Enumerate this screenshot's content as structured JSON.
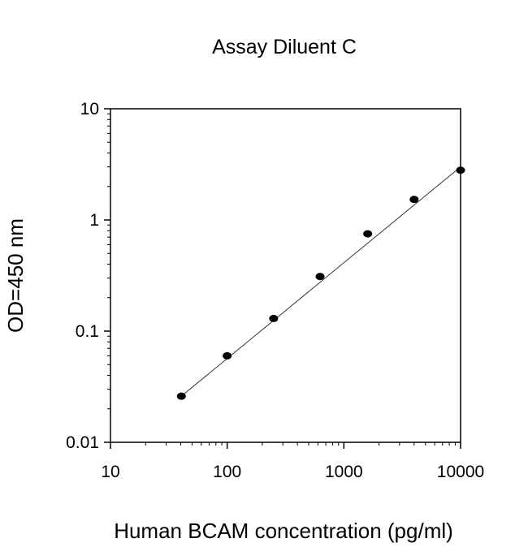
{
  "chart_data": {
    "type": "scatter",
    "title": "Assay Diluent C",
    "xlabel": "Human BCAM concentration (pg/ml)",
    "ylabel": "OD=450 nm",
    "xscale": "log",
    "yscale": "log",
    "xlim": [
      10,
      10000
    ],
    "ylim": [
      0.01,
      10
    ],
    "x_ticks": [
      10,
      100,
      1000,
      10000
    ],
    "x_tick_labels": [
      "10",
      "100",
      "1000",
      "10000"
    ],
    "y_ticks": [
      0.01,
      0.1,
      1,
      10
    ],
    "y_tick_labels": [
      "0.01",
      "0.1",
      "1",
      "10"
    ],
    "grid": false,
    "legend": "none",
    "series": [
      {
        "x": [
          40.5,
          100,
          250,
          625,
          1600,
          4000,
          10000
        ],
        "y": [
          0.026,
          0.06,
          0.13,
          0.31,
          0.75,
          1.53,
          2.8
        ],
        "marker": "filled-circle",
        "color": "#000000"
      }
    ],
    "fit_line": {
      "x": [
        40.5,
        10000
      ],
      "y": [
        0.026,
        3.0
      ],
      "color": "#333333"
    }
  }
}
